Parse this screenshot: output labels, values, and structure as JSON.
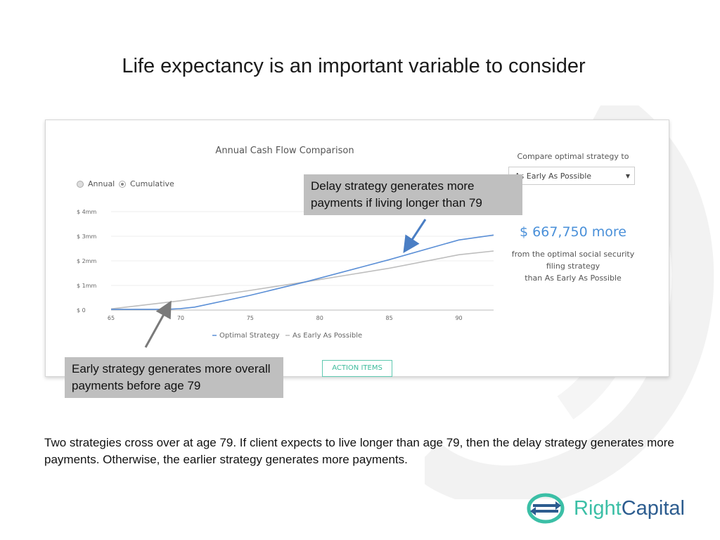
{
  "slide": {
    "title": "Life expectancy is an important variable to consider",
    "footnote": "Two strategies cross over at age 79. If client expects to live longer than age 79, then the delay strategy generates more payments. Otherwise, the earlier strategy generates more payments."
  },
  "panel": {
    "toggle_annual": "Annual",
    "toggle_cumulative": "Cumulative",
    "compare_label": "Compare optimal strategy to",
    "compare_value": "As Early As Possible",
    "amount": "$ 667,750 more",
    "amount_desc_1": "from the optimal social security",
    "amount_desc_2": "filing strategy",
    "amount_desc_3": "than As Early As Possible",
    "action_button": "ACTION ITEMS"
  },
  "callouts": {
    "delay": "Delay strategy generates more payments if living longer than 79",
    "early": "Early strategy generates more overall payments before age 79"
  },
  "logo": {
    "right": "Right",
    "capital": "Capital"
  },
  "colors": {
    "optimal": "#5b8fd6",
    "early": "#bdbdbd",
    "accent": "#3bbfa6",
    "brand": "#2c5c8f"
  },
  "chart_data": {
    "type": "line",
    "title": "Annual Cash Flow Comparison",
    "xlabel": "",
    "ylabel": "",
    "xlim": [
      65,
      92.5
    ],
    "ylim": [
      0,
      4
    ],
    "x_ticks": [
      65,
      70,
      75,
      80,
      85,
      90
    ],
    "y_ticks": [
      0,
      1,
      2,
      3,
      4
    ],
    "y_tick_labels": [
      "$ 0",
      "$ 1mm",
      "$ 2mm",
      "$ 3mm",
      "$ 4mm"
    ],
    "grid": true,
    "legend_position": "bottom",
    "series": [
      {
        "name": "Optimal Strategy",
        "color": "#5b8fd6",
        "x": [
          65,
          69,
          70,
          71,
          75,
          79,
          85,
          90,
          92.5
        ],
        "y": [
          0.03,
          0.03,
          0.06,
          0.12,
          0.6,
          1.15,
          2.05,
          2.85,
          3.05
        ]
      },
      {
        "name": "As Early As Possible",
        "color": "#bdbdbd",
        "x": [
          65,
          70,
          75,
          79,
          85,
          90,
          92.5
        ],
        "y": [
          0.05,
          0.38,
          0.8,
          1.15,
          1.7,
          2.25,
          2.4
        ]
      }
    ]
  }
}
